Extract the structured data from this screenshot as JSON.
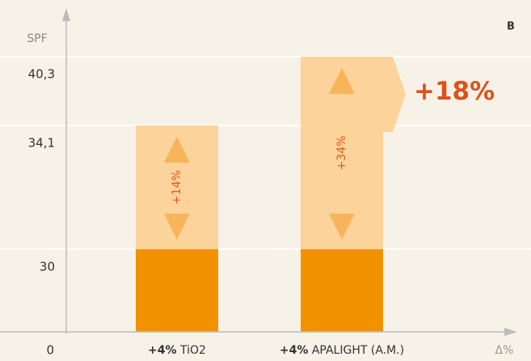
{
  "chart_data": {
    "type": "stacked_bar",
    "panel_label": "B",
    "y_label": "SPF",
    "x_label": "Δ%",
    "categories": [
      "TiO2",
      "APALIGHT (A.M.)"
    ],
    "category_doses": [
      "+4%",
      "+4%"
    ],
    "series": [
      {
        "color": "#f39200",
        "values": [
          30,
          30
        ]
      },
      {
        "color": "#fbd39b",
        "values": [
          4.1,
          10.3
        ]
      }
    ],
    "increase_labels": [
      "+14%",
      "+34%"
    ],
    "annotation": "+18%",
    "ylim": [
      0,
      40.3
    ],
    "yticks": [
      0,
      30,
      {
        "value": 34.1,
        "label": "34,1"
      },
      {
        "value": 40.3,
        "label": "40,3"
      }
    ],
    "grid": true
  }
}
